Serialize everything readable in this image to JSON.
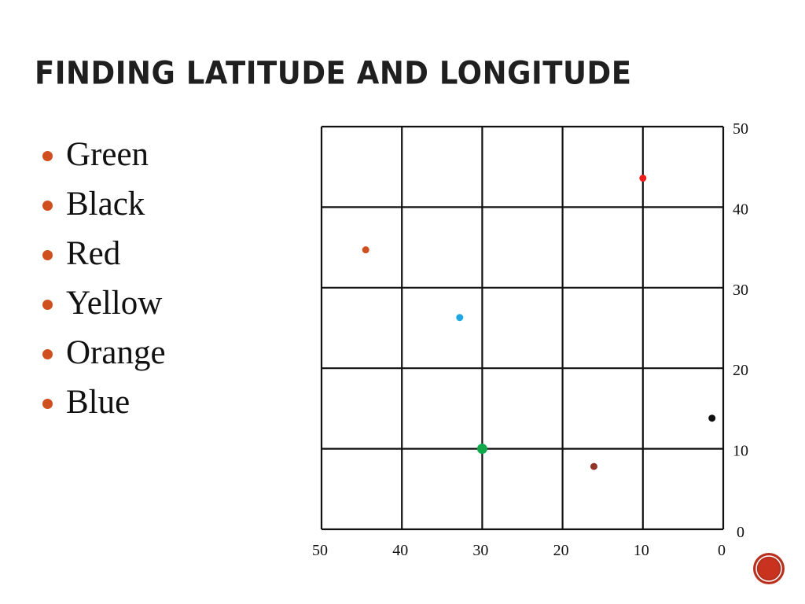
{
  "slide": {
    "title": "FINDING LATITUDE AND LONGITUDE",
    "bullet_color": "#cf4f1f",
    "bullets": [
      "Green",
      "Black",
      "Red",
      "Yellow",
      "Orange",
      "Blue"
    ]
  },
  "grid": {
    "x_labels": [
      "50",
      "40",
      "30",
      "20",
      "10",
      "0"
    ],
    "y_labels": [
      "50",
      "40",
      "30",
      "20",
      "10",
      "0"
    ],
    "x_range": [
      50,
      0
    ],
    "y_range": [
      0,
      50
    ],
    "step": 10,
    "points": [
      {
        "name": "red-point",
        "color": "#ee1c1c",
        "x": 10,
        "y": 43.6,
        "r": 4.5
      },
      {
        "name": "orange-point",
        "color": "#cf4f1f",
        "x": 44.5,
        "y": 34.7,
        "r": 4.5
      },
      {
        "name": "blue-point",
        "color": "#1ea7e1",
        "x": 32.8,
        "y": 26.3,
        "r": 4.5
      },
      {
        "name": "black-point",
        "color": "#111111",
        "x": 1.4,
        "y": 13.8,
        "r": 4.5
      },
      {
        "name": "green-point",
        "color": "#11a84c",
        "x": 30,
        "y": 10,
        "r": 6.5
      },
      {
        "name": "brown-point",
        "color": "#93342a",
        "x": 16.1,
        "y": 7.8,
        "r": 4.5
      }
    ]
  },
  "logo": {
    "outer_color": "#b8311f",
    "inner_color": "#c8321f"
  }
}
